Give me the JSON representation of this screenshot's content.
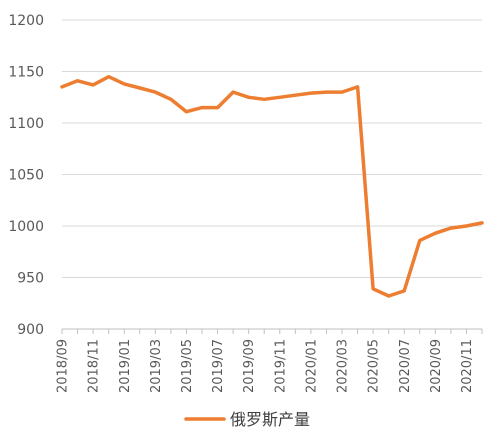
{
  "chart_data": {
    "type": "line",
    "y_ticks": [
      900,
      950,
      1000,
      1050,
      1100,
      1150,
      1200
    ],
    "ylim": [
      900,
      1200
    ],
    "x_tick_labels": [
      "2018/09",
      "2018/11",
      "2019/01",
      "2019/03",
      "2019/05",
      "2019/07",
      "2019/09",
      "2019/11",
      "2020/01",
      "2020/03",
      "2020/05",
      "2020/07",
      "2020/09",
      "2020/11"
    ],
    "x": [
      "2018/09",
      "2018/10",
      "2018/11",
      "2018/12",
      "2019/01",
      "2019/02",
      "2019/03",
      "2019/04",
      "2019/05",
      "2019/06",
      "2019/07",
      "2019/08",
      "2019/09",
      "2019/10",
      "2019/11",
      "2019/12",
      "2020/01",
      "2020/02",
      "2020/03",
      "2020/04",
      "2020/05",
      "2020/06",
      "2020/07",
      "2020/08",
      "2020/09",
      "2020/10",
      "2020/11",
      "2020/12"
    ],
    "series": [
      {
        "name": "俄罗斯产量",
        "color": "#ED7D31",
        "values": [
          1135,
          1141,
          1137,
          1145,
          1138,
          1134,
          1130,
          1123,
          1111,
          1115,
          1115,
          1130,
          1125,
          1123,
          1125,
          1127,
          1129,
          1130,
          1130,
          1135,
          939,
          932,
          937,
          986,
          993,
          998,
          1000,
          1003
        ]
      }
    ],
    "grid": "horizontal",
    "legend_position": "bottom"
  }
}
